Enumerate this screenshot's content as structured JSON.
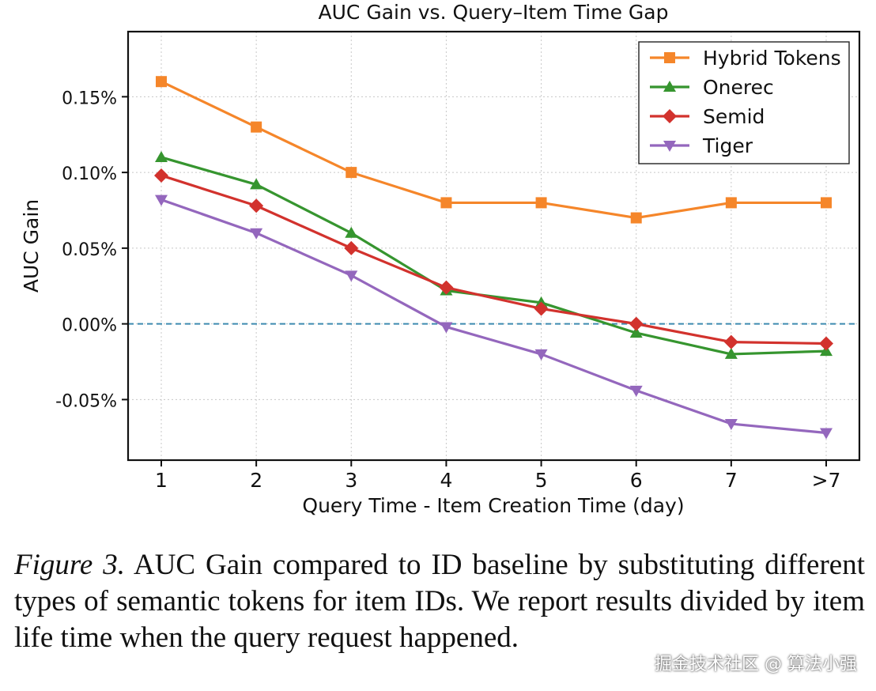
{
  "chart_data": {
    "type": "line",
    "title": "AUC Gain vs. Query–Item Time Gap",
    "xlabel": "Query Time - Item Creation Time (day)",
    "ylabel": "AUC Gain",
    "categories": [
      "1",
      "2",
      "3",
      "4",
      "5",
      "6",
      "7",
      ">7"
    ],
    "ylim": [
      -0.09,
      0.193
    ],
    "yticks": [
      -0.05,
      0.0,
      0.05,
      0.1,
      0.15
    ],
    "ytick_labels": [
      "-0.05%",
      "0.00%",
      "0.05%",
      "0.10%",
      "0.15%"
    ],
    "grid": true,
    "legend_position": "top-right",
    "baseline": {
      "y": 0.0,
      "style": "dashed",
      "color": "#3d8bb0"
    },
    "series": [
      {
        "name": "Hybrid Tokens",
        "color": "#f5862a",
        "marker": "square",
        "values": [
          0.16,
          0.13,
          0.1,
          0.08,
          0.08,
          0.07,
          0.08,
          0.08
        ]
      },
      {
        "name": "Onerec",
        "color": "#36952f",
        "marker": "triangle-up",
        "values": [
          0.11,
          0.092,
          0.06,
          0.022,
          0.014,
          -0.006,
          -0.02,
          -0.018
        ]
      },
      {
        "name": "Semid",
        "color": "#d2322d",
        "marker": "diamond",
        "values": [
          0.098,
          0.078,
          0.05,
          0.024,
          0.01,
          0.0,
          -0.012,
          -0.013
        ]
      },
      {
        "name": "Tiger",
        "color": "#9467bd",
        "marker": "triangle-down",
        "values": [
          0.082,
          0.06,
          0.032,
          -0.002,
          -0.02,
          -0.044,
          -0.066,
          -0.072
        ]
      }
    ]
  },
  "caption": {
    "figure_label": "Figure 3.",
    "text": "AUC Gain compared to ID baseline by substituting different types of semantic tokens for item IDs. We report results divided by item life time when the query request happened."
  },
  "watermark": "掘金技术社区 @ 算法小强"
}
